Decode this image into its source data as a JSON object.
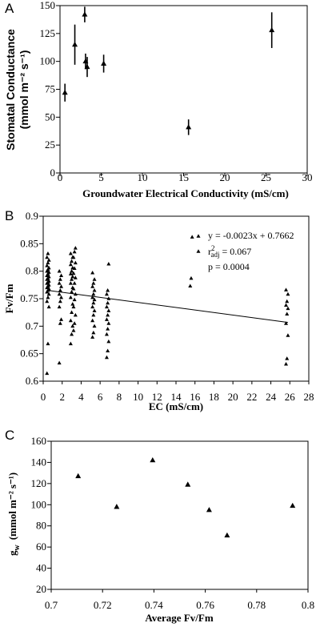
{
  "chart_data": [
    {
      "panel": "A",
      "type": "scatter",
      "xlabel": "Groundwater Electrical Conductivity (mS/cm)",
      "ylabel_line1": "Stomatal Conductance",
      "ylabel_line2": "(mmol m⁻² s⁻¹)",
      "xlim": [
        0,
        30
      ],
      "ylim": [
        0,
        150
      ],
      "xticks": [
        0,
        5,
        10,
        15,
        20,
        25,
        30
      ],
      "yticks": [
        0,
        25,
        50,
        75,
        100,
        125,
        150
      ],
      "grid": false,
      "marker": "triangle",
      "points": [
        {
          "x": 0.6,
          "y": 72,
          "err": 8
        },
        {
          "x": 1.8,
          "y": 115,
          "err": 18
        },
        {
          "x": 3.0,
          "y": 142,
          "err": 7
        },
        {
          "x": 3.1,
          "y": 100,
          "err": 7
        },
        {
          "x": 3.3,
          "y": 95,
          "err": 9
        },
        {
          "x": 5.3,
          "y": 98,
          "err": 8
        },
        {
          "x": 15.6,
          "y": 41,
          "err": 7
        },
        {
          "x": 25.7,
          "y": 128,
          "err": 16
        }
      ]
    },
    {
      "panel": "B",
      "type": "scatter",
      "xlabel": "EC (mS/cm)",
      "ylabel": "Fv/Fm",
      "xlim": [
        0,
        28
      ],
      "ylim": [
        0.6,
        0.9
      ],
      "xticks": [
        0,
        2,
        4,
        6,
        8,
        10,
        12,
        14,
        16,
        18,
        20,
        22,
        24,
        26,
        28
      ],
      "yticks": [
        0.6,
        0.65,
        0.7,
        0.75,
        0.8,
        0.85,
        0.9
      ],
      "grid": false,
      "marker": "triangle",
      "annotation": {
        "equation": "y = -0.0023x + 0.7662",
        "r2_main": "r",
        "r2_sup": "2",
        "r2_sub": "adj",
        "r2_value": " = 0.067",
        "p": "p = 0.0004"
      },
      "regression": {
        "slope": -0.0023,
        "intercept": 0.7662,
        "x_range": [
          0.5,
          25.8
        ]
      },
      "point_groups": [
        {
          "x": 0.5,
          "y": [
            0.614,
            0.668,
            0.735,
            0.745,
            0.752,
            0.758,
            0.762,
            0.765,
            0.768,
            0.77,
            0.773,
            0.775,
            0.778,
            0.78,
            0.782,
            0.785,
            0.787,
            0.79,
            0.792,
            0.795,
            0.798,
            0.8,
            0.803,
            0.806,
            0.81,
            0.815,
            0.82,
            0.825,
            0.832
          ]
        },
        {
          "x": 1.8,
          "y": [
            0.633,
            0.705,
            0.712,
            0.735,
            0.745,
            0.752,
            0.758,
            0.765,
            0.772,
            0.778,
            0.785,
            0.792,
            0.8
          ]
        },
        {
          "x": 3.0,
          "y": [
            0.668,
            0.685,
            0.7,
            0.71,
            0.725,
            0.74,
            0.752,
            0.762,
            0.77,
            0.778,
            0.785,
            0.79,
            0.795,
            0.8,
            0.806,
            0.812,
            0.818,
            0.825,
            0.832
          ]
        },
        {
          "x": 3.3,
          "y": [
            0.692,
            0.705,
            0.72,
            0.735,
            0.748,
            0.758,
            0.768,
            0.778,
            0.788,
            0.796,
            0.805,
            0.815,
            0.825,
            0.835,
            0.842
          ]
        },
        {
          "x": 5.3,
          "y": [
            0.68,
            0.688,
            0.7,
            0.71,
            0.72,
            0.728,
            0.735,
            0.742,
            0.748,
            0.752,
            0.758,
            0.765,
            0.772,
            0.778,
            0.785,
            0.797
          ]
        },
        {
          "x": 6.8,
          "y": [
            0.643,
            0.655,
            0.672,
            0.685,
            0.695,
            0.705,
            0.712,
            0.72,
            0.728,
            0.735,
            0.742,
            0.75,
            0.758,
            0.765,
            0.813
          ]
        },
        {
          "x": 15.6,
          "y": [
            0.773,
            0.787,
            0.862
          ]
        },
        {
          "x": 25.7,
          "y": [
            0.631,
            0.641,
            0.683,
            0.705,
            0.722,
            0.732,
            0.738,
            0.745,
            0.758,
            0.766
          ]
        }
      ]
    },
    {
      "panel": "C",
      "type": "scatter",
      "xlabel": "Average Fv/Fm",
      "ylabel_main": "g",
      "ylabel_sub": "w",
      "ylabel_units": "(mmol m⁻² s⁻¹)",
      "xlim": [
        0.7,
        0.8
      ],
      "ylim": [
        20,
        160
      ],
      "xticks": [
        "0.7",
        "0.72",
        "0.74",
        "0.76",
        "0.78",
        "0.8"
      ],
      "yticks": [
        20,
        40,
        60,
        80,
        100,
        120,
        140,
        160
      ],
      "grid": false,
      "marker": "triangle",
      "points": [
        {
          "x": 0.7105,
          "y": 127
        },
        {
          "x": 0.7255,
          "y": 98
        },
        {
          "x": 0.7395,
          "y": 142
        },
        {
          "x": 0.7532,
          "y": 119
        },
        {
          "x": 0.7615,
          "y": 95
        },
        {
          "x": 0.7685,
          "y": 71
        },
        {
          "x": 0.794,
          "y": 99
        }
      ]
    }
  ]
}
